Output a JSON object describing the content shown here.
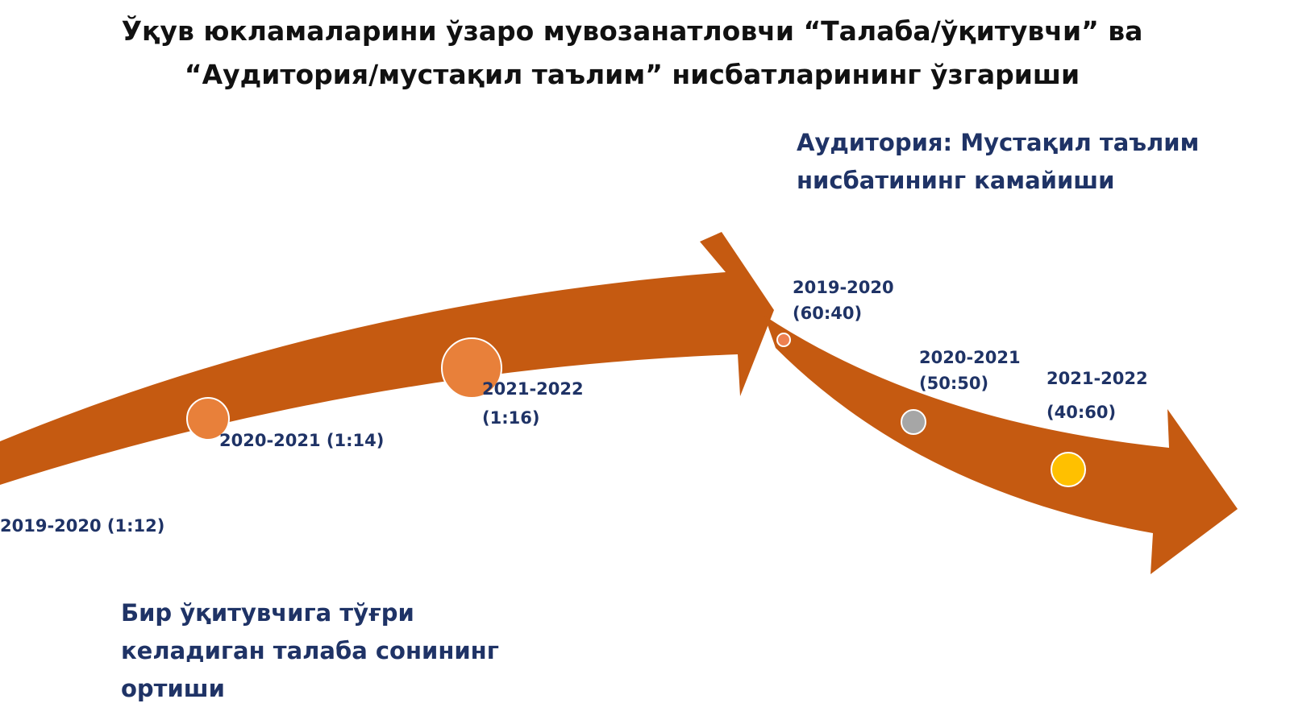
{
  "title": [
    "Ўқув юкламаларини ўзаро мувозанатловчи “Талаба/ўқитувчи” ва",
    "“Аудитория/мустақил таълим” нисбатларининг ўзгариши"
  ],
  "left": {
    "caption": [
      "Бир ўқитувчига тўғри",
      "келадиган талаба сонининг",
      "ортиши"
    ],
    "points": [
      {
        "label": [
          "2019-2020 (1:12)"
        ]
      },
      {
        "label": [
          "2020-2021 (1:14)"
        ]
      },
      {
        "label": [
          "2021-2022",
          "(1:16)"
        ]
      }
    ]
  },
  "right": {
    "caption": [
      "Аудитория: Мустақил таълим",
      "нисбатининг камайиши"
    ],
    "points": [
      {
        "label": [
          "2019-2020",
          "(60:40)"
        ]
      },
      {
        "label": [
          "2020-2021",
          "(50:50)"
        ]
      },
      {
        "label": [
          "2021-2022",
          "(40:60)"
        ]
      }
    ]
  }
}
